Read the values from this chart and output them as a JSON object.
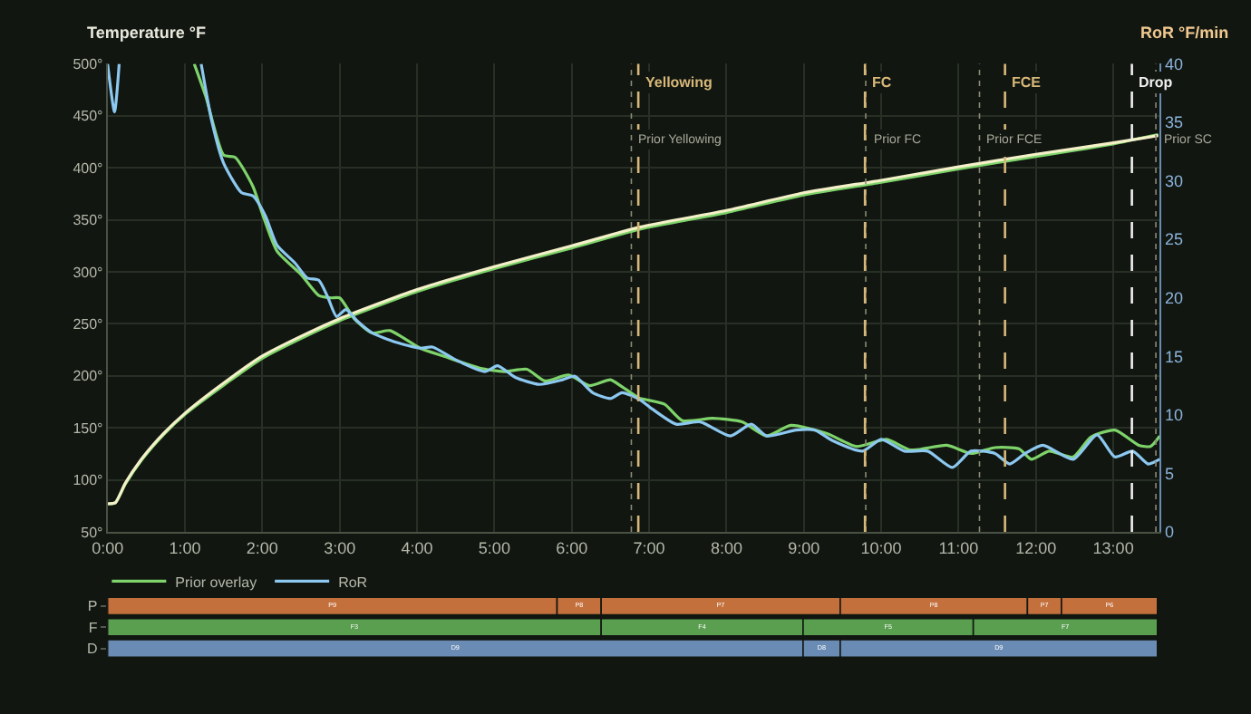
{
  "chart_data": [
    {
      "type": "line",
      "ylabel": "Temperature °F",
      "y2label": "RoR °F/min",
      "xlim": [
        0,
        13.6
      ],
      "xticks": [
        {
          "value": 0,
          "label": "0:00"
        },
        {
          "value": 1,
          "label": "1:00"
        },
        {
          "value": 2,
          "label": "2:00"
        },
        {
          "value": 3,
          "label": "3:00"
        },
        {
          "value": 4,
          "label": "4:00"
        },
        {
          "value": 5,
          "label": "5:00"
        },
        {
          "value": 6,
          "label": "6:00"
        },
        {
          "value": 7,
          "label": "7:00"
        },
        {
          "value": 8,
          "label": "8:00"
        },
        {
          "value": 9,
          "label": "9:00"
        },
        {
          "value": 10,
          "label": "10:00"
        },
        {
          "value": 11,
          "label": "11:00"
        },
        {
          "value": 12,
          "label": "12:00"
        },
        {
          "value": 13,
          "label": "13:00"
        }
      ],
      "ylim": [
        50,
        500
      ],
      "yticks": [
        {
          "value": 50,
          "label": "50°"
        },
        {
          "value": 100,
          "label": "100°"
        },
        {
          "value": 150,
          "label": "150°"
        },
        {
          "value": 200,
          "label": "200°"
        },
        {
          "value": 250,
          "label": "250°"
        },
        {
          "value": 300,
          "label": "300°"
        },
        {
          "value": 350,
          "label": "350°"
        },
        {
          "value": 400,
          "label": "400°"
        },
        {
          "value": 450,
          "label": "450°"
        },
        {
          "value": 500,
          "label": "500°"
        }
      ],
      "y2lim": [
        0,
        40
      ],
      "y2ticks": [
        0,
        5,
        10,
        15,
        20,
        25,
        30,
        35,
        40
      ],
      "grid": true,
      "legend": "bottom",
      "line_style": "solid",
      "marker": "none",
      "series": [
        {
          "name": "Prior overlay",
          "color": "#7ed36a",
          "x": [
            0,
            0.1,
            0.23,
            0.46,
            0.73,
            1.0,
            1.5,
            2.0,
            2.5,
            3.0,
            4.0,
            5.0,
            6.0,
            6.88,
            8.0,
            9.0,
            10.0,
            11.0,
            12.0,
            13.0,
            13.58
          ],
          "values": [
            77,
            78,
            96,
            121,
            144,
            163,
            191,
            217,
            236,
            253,
            281,
            303,
            323,
            341,
            357,
            374,
            386,
            399,
            411,
            423,
            432
          ]
        },
        {
          "color": "#f4f0c8",
          "x": [
            0,
            0.1,
            0.23,
            0.46,
            0.73,
            1.0,
            1.5,
            2.0,
            2.5,
            3.0,
            4.0,
            5.0,
            6.0,
            6.88,
            8.0,
            9.0,
            10.0,
            11.0,
            12.0,
            13.0,
            13.58
          ],
          "values": [
            77,
            78,
            97,
            122,
            145,
            164,
            193,
            219,
            238,
            255,
            283,
            305,
            325,
            343,
            359,
            376,
            388,
            401,
            413,
            424,
            431
          ]
        },
        {
          "color": "#7ed36a",
          "axis": "y2",
          "x": [
            1.12,
            1.27,
            1.5,
            1.65,
            1.88,
            2.0,
            2.19,
            2.5,
            2.73,
            2.88,
            3.0,
            3.19,
            3.42,
            3.65,
            4.04,
            4.35,
            4.81,
            5.12,
            5.42,
            5.65,
            5.96,
            6.23,
            6.5,
            6.65,
            6.88,
            6.96,
            7.2,
            7.43,
            7.82,
            8.2,
            8.52,
            8.83,
            9.3,
            9.68,
            10.07,
            10.38,
            10.85,
            11.16,
            11.47,
            11.78,
            11.94,
            12.17,
            12.48,
            12.71,
            13.02,
            13.33,
            13.48,
            13.6
          ],
          "values": [
            40,
            37.2,
            32.2,
            32,
            29.5,
            27.2,
            24,
            22,
            20.2,
            20,
            20,
            18.2,
            17,
            17.2,
            15.7,
            15,
            14,
            13.7,
            13.9,
            12.9,
            13.4,
            12.5,
            13,
            12.4,
            11.4,
            11.3,
            10.9,
            9.5,
            9.7,
            9.4,
            8.2,
            9.1,
            8.4,
            7.3,
            7.9,
            7.0,
            7.4,
            6.7,
            7.2,
            7.1,
            6.2,
            6.9,
            6.4,
            8.1,
            8.7,
            7.4,
            7.3,
            8.2
          ]
        },
        {
          "name": "RoR",
          "color": "#8cc8f0",
          "axis": "y2",
          "x": [
            0,
            0.09,
            0.15,
            0.2,
            1.21,
            1.35,
            1.5,
            1.73,
            1.88,
            2.04,
            2.19,
            2.42,
            2.58,
            2.73,
            2.85,
            2.96,
            3.08,
            3.23,
            3.42,
            3.73,
            4.04,
            4.2,
            4.5,
            4.88,
            5.04,
            5.27,
            5.58,
            5.88,
            6.04,
            6.27,
            6.5,
            6.65,
            6.88,
            7.04,
            7.35,
            7.66,
            8.05,
            8.32,
            8.52,
            8.9,
            9.14,
            9.37,
            9.76,
            10.0,
            10.3,
            10.6,
            10.92,
            11.16,
            11.47,
            11.66,
            11.86,
            12.09,
            12.48,
            12.79,
            13.02,
            13.25,
            13.45,
            13.6
          ],
          "values": [
            40,
            35.9,
            40,
            null,
            40,
            35,
            31.5,
            29,
            28.7,
            27,
            24.5,
            23,
            21.7,
            21.5,
            20,
            18.4,
            19,
            18,
            17,
            16.2,
            15.7,
            15.8,
            14.7,
            13.7,
            14.2,
            13.2,
            12.6,
            13.0,
            13.3,
            11.9,
            11.4,
            11.9,
            11.3,
            10.5,
            9.2,
            9.4,
            8.2,
            9.2,
            8.2,
            8.7,
            8.7,
            7.8,
            6.9,
            7.9,
            6.9,
            6.9,
            5.5,
            6.9,
            6.7,
            5.8,
            6.7,
            7.4,
            6.2,
            8.3,
            6.4,
            6.9,
            5.8,
            6.2
          ]
        }
      ],
      "ref_lines": [
        {
          "axis": "x",
          "value": 6.77,
          "label": "Prior Yellowing",
          "color": "#8a8a72",
          "line_style": "dotted"
        },
        {
          "axis": "x",
          "value": 9.8,
          "label": "Prior FC",
          "color": "#8a8a72",
          "line_style": "dotted"
        },
        {
          "axis": "x",
          "value": 11.27,
          "label": "Prior FCE",
          "color": "#8a8a72",
          "line_style": "dotted"
        },
        {
          "axis": "x",
          "value": 13.55,
          "label": "Prior SC",
          "color": "#8a8a72",
          "line_style": "dotted"
        },
        {
          "axis": "x",
          "value": 6.86,
          "label": "Yellowing",
          "color": "#d8b878",
          "line_style": "dashed"
        },
        {
          "axis": "x",
          "value": 9.79,
          "label": "FC",
          "color": "#d8b878",
          "line_style": "dashed"
        },
        {
          "axis": "x",
          "value": 11.6,
          "label": "FCE",
          "color": "#d8b878",
          "line_style": "dashed"
        },
        {
          "axis": "x",
          "value": 13.24,
          "label": "Drop",
          "color": "#f0f0f0",
          "line_style": "dashed"
        }
      ]
    },
    {
      "type": "bar",
      "orientation": "horizontal",
      "stacked": true,
      "categories": [
        "P",
        "F",
        "D"
      ],
      "xlim": [
        0,
        13.6
      ],
      "tick_labels": "y",
      "series": [
        {
          "colors": [
            "#c4703c",
            "#5a9e50",
            "#6a8cb4"
          ],
          "values": [
            5.81,
            6.38,
            8.99
          ],
          "value_labels": [
            "P9",
            "F3",
            "D9"
          ]
        },
        {
          "colors": [
            "#c4703c",
            "#5a9e50",
            "#6a8cb4"
          ],
          "values": [
            0.57,
            2.61,
            0.48
          ],
          "value_labels": [
            "P8",
            "F4",
            "D8"
          ]
        },
        {
          "colors": [
            "#c4703c",
            "#5a9e50",
            "#6a8cb4"
          ],
          "values": [
            3.09,
            2.2,
            4.1
          ],
          "value_labels": [
            "P7",
            "F5",
            "D9"
          ]
        },
        {
          "colors": [
            "#c4703c",
            "#5a9e50",
            "#6a8cb4"
          ],
          "values": [
            2.42,
            2.38,
            null
          ],
          "value_labels": [
            "P8",
            "F7",
            null
          ]
        },
        {
          "colors": [
            "#c4703c",
            "#5a9e50",
            "#6a8cb4"
          ],
          "values": [
            0.44,
            null,
            null
          ],
          "value_labels": [
            "P7",
            null,
            null
          ]
        },
        {
          "colors": [
            "#c4703c",
            "#5a9e50",
            "#6a8cb4"
          ],
          "values": [
            1.24,
            null,
            null
          ],
          "value_labels": [
            "P6",
            null,
            null
          ]
        }
      ]
    }
  ]
}
